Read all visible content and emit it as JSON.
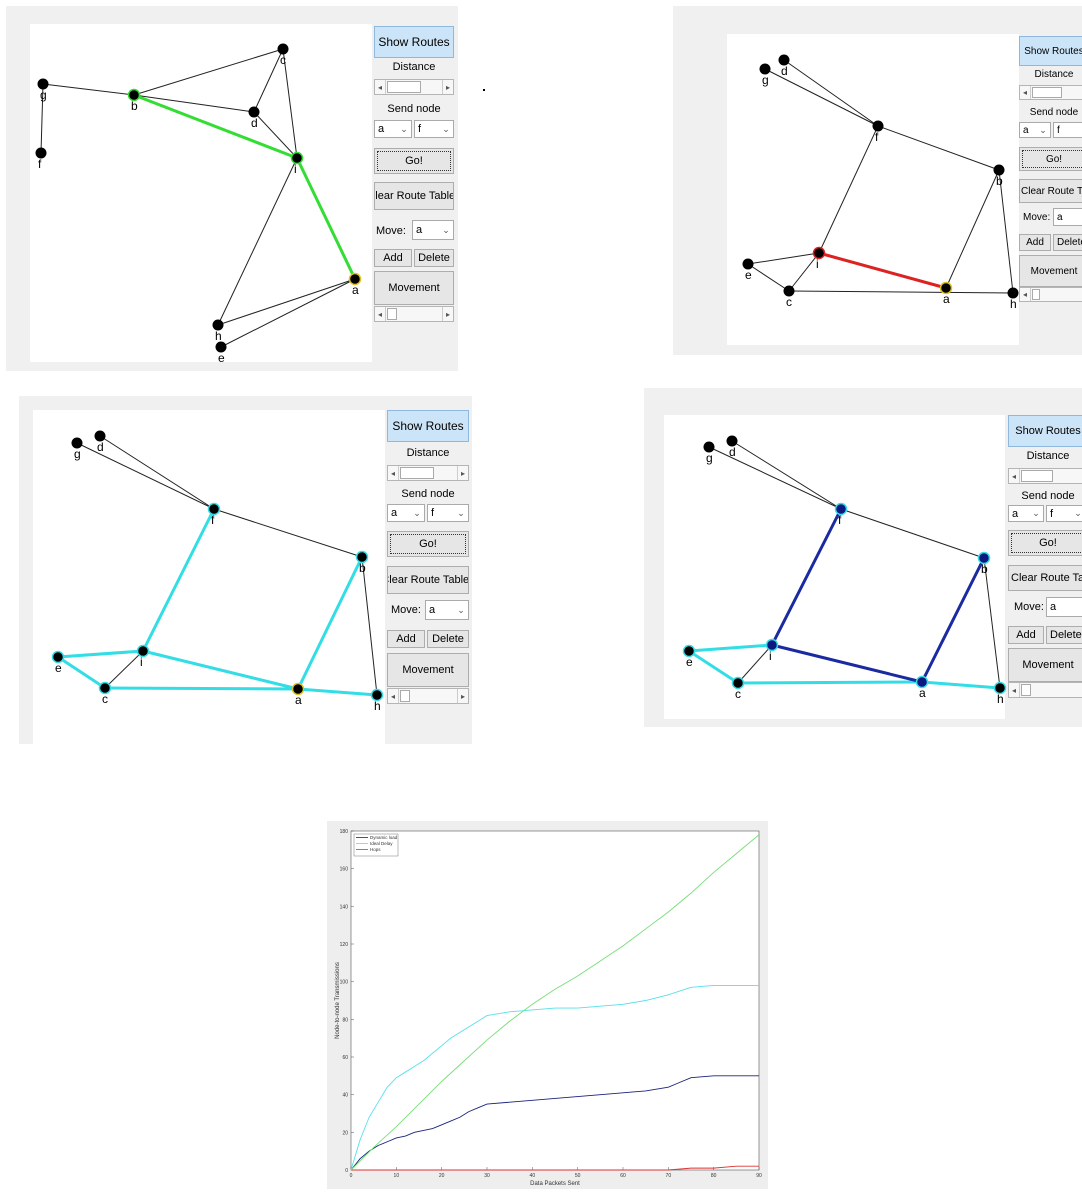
{
  "controls": {
    "show_routes": "Show Routes",
    "distance": "Distance",
    "send_node": "Send node",
    "from_value": "a",
    "to_value": "f",
    "go": "Go!",
    "clear_route_tables": "Clear Route Tables",
    "clear_route_tables_truncated": "Clear Route Table",
    "move_label": "Move:",
    "move_value": "a",
    "add": "Add",
    "delete": "Delete",
    "delete_truncated": "Delete",
    "movement": "Movement"
  },
  "panels": [
    {
      "id": "top-left",
      "edges": [
        [
          "g",
          "b"
        ],
        [
          "g",
          "f"
        ],
        [
          "b",
          "c"
        ],
        [
          "b",
          "d"
        ],
        [
          "c",
          "d"
        ],
        [
          "c",
          "i"
        ],
        [
          "d",
          "i"
        ],
        [
          "i",
          "h"
        ],
        [
          "h",
          "a"
        ],
        [
          "a",
          "e"
        ],
        [
          "a",
          "i"
        ],
        [
          "b",
          "i"
        ]
      ],
      "highlight": [
        [
          "b",
          "i"
        ],
        [
          "i",
          "a"
        ]
      ],
      "highlight_color": "#33dd33",
      "nodes": [
        {
          "id": "g",
          "label": "g"
        },
        {
          "id": "f",
          "label": "f"
        },
        {
          "id": "b",
          "label": "b"
        },
        {
          "id": "c",
          "label": "c"
        },
        {
          "id": "d",
          "label": "d"
        },
        {
          "id": "i",
          "label": "i"
        },
        {
          "id": "a",
          "label": "a"
        },
        {
          "id": "h",
          "label": "h"
        },
        {
          "id": "e",
          "label": "e"
        }
      ]
    },
    {
      "id": "top-right",
      "edges": [
        [
          "g",
          "f"
        ],
        [
          "d",
          "f"
        ],
        [
          "f",
          "i"
        ],
        [
          "f",
          "b"
        ],
        [
          "b",
          "a"
        ],
        [
          "b",
          "h"
        ],
        [
          "e",
          "i"
        ],
        [
          "e",
          "c"
        ],
        [
          "c",
          "i"
        ],
        [
          "c",
          "h"
        ],
        [
          "i",
          "a"
        ]
      ],
      "highlight": [
        [
          "i",
          "a"
        ]
      ],
      "highlight_color": "#dd2222",
      "nodes": [
        {
          "id": "g",
          "label": "g"
        },
        {
          "id": "d",
          "label": "d"
        },
        {
          "id": "f",
          "label": "f"
        },
        {
          "id": "b",
          "label": "b"
        },
        {
          "id": "e",
          "label": "e"
        },
        {
          "id": "i",
          "label": "i"
        },
        {
          "id": "c",
          "label": "c"
        },
        {
          "id": "a",
          "label": "a"
        },
        {
          "id": "h",
          "label": "h"
        }
      ]
    },
    {
      "id": "middle-left",
      "edges": [
        [
          "g",
          "f"
        ],
        [
          "d",
          "f"
        ],
        [
          "f",
          "b"
        ],
        [
          "b",
          "h"
        ],
        [
          "c",
          "i"
        ]
      ],
      "highlight": [
        [
          "f",
          "i"
        ],
        [
          "i",
          "a"
        ],
        [
          "a",
          "b"
        ],
        [
          "e",
          "i"
        ],
        [
          "e",
          "c"
        ],
        [
          "c",
          "a"
        ],
        [
          "a",
          "h"
        ]
      ],
      "highlight_color": "#33dde6",
      "nodes": [
        {
          "id": "g",
          "label": "g"
        },
        {
          "id": "d",
          "label": "d"
        },
        {
          "id": "f",
          "label": "f"
        },
        {
          "id": "b",
          "label": "b"
        },
        {
          "id": "e",
          "label": "e"
        },
        {
          "id": "i",
          "label": "i"
        },
        {
          "id": "c",
          "label": "c"
        },
        {
          "id": "a",
          "label": "a"
        },
        {
          "id": "h",
          "label": "h"
        }
      ]
    },
    {
      "id": "middle-right",
      "edges": [
        [
          "g",
          "f"
        ],
        [
          "d",
          "f"
        ],
        [
          "f",
          "b"
        ],
        [
          "b",
          "h"
        ],
        [
          "c",
          "i"
        ]
      ],
      "highlight": [
        [
          "e",
          "i"
        ],
        [
          "e",
          "c"
        ],
        [
          "c",
          "a"
        ],
        [
          "a",
          "h"
        ]
      ],
      "highlight_color": "#33dde6",
      "highlight2": [
        [
          "f",
          "i"
        ],
        [
          "i",
          "a"
        ],
        [
          "a",
          "b"
        ]
      ],
      "highlight2_color": "#1a2aa0",
      "nodes": [
        {
          "id": "g",
          "label": "g"
        },
        {
          "id": "d",
          "label": "d"
        },
        {
          "id": "f",
          "label": "f"
        },
        {
          "id": "b",
          "label": "b"
        },
        {
          "id": "e",
          "label": "e"
        },
        {
          "id": "i",
          "label": "i"
        },
        {
          "id": "c",
          "label": "c"
        },
        {
          "id": "a",
          "label": "a"
        },
        {
          "id": "h",
          "label": "h"
        }
      ]
    }
  ],
  "chart_data": {
    "type": "line",
    "title": "",
    "xlabel": "Data Packets Sent",
    "ylabel": "Node-to-node Transmissions",
    "xlim": [
      0,
      90
    ],
    "ylim": [
      0,
      180
    ],
    "xticks": [
      0,
      10,
      20,
      30,
      40,
      50,
      60,
      70,
      80,
      90
    ],
    "yticks": [
      0,
      20,
      40,
      60,
      80,
      100,
      120,
      140,
      160,
      180
    ],
    "legend_placement": "top-left",
    "series": [
      {
        "name": "Dynamic load",
        "color": "#1a237e",
        "x": [
          0,
          2,
          4,
          6,
          8,
          10,
          12,
          14,
          16,
          18,
          20,
          22,
          24,
          26,
          28,
          30,
          35,
          40,
          45,
          50,
          55,
          60,
          65,
          70,
          72,
          75,
          80,
          85,
          90
        ],
        "y": [
          0,
          6,
          10,
          13,
          15,
          17,
          18,
          20,
          21,
          22,
          24,
          26,
          28,
          31,
          33,
          35,
          36,
          37,
          38,
          39,
          40,
          41,
          42,
          44,
          46,
          49,
          50,
          50,
          50
        ]
      },
      {
        "name": "Ideal Delay",
        "color": "#55e0ea",
        "x": [
          0,
          1,
          2,
          4,
          6,
          8,
          10,
          12,
          14,
          16,
          18,
          20,
          22,
          24,
          26,
          28,
          30,
          35,
          40,
          45,
          50,
          55,
          60,
          65,
          70,
          75,
          80,
          85,
          90
        ],
        "y": [
          0,
          8,
          16,
          28,
          36,
          44,
          49,
          52,
          55,
          58,
          62,
          66,
          70,
          73,
          76,
          79,
          82,
          84,
          85,
          86,
          86,
          87,
          88,
          90,
          93,
          97,
          98,
          98,
          98
        ]
      },
      {
        "name": "Hops",
        "color": "#dd3333",
        "x": [
          0,
          10,
          20,
          30,
          40,
          50,
          60,
          70,
          75,
          80,
          85,
          90
        ],
        "y": [
          0,
          0,
          0,
          0,
          0,
          0,
          0,
          0,
          1,
          1,
          2,
          2
        ]
      },
      {
        "name": "",
        "color": "#77dd77",
        "x": [
          0,
          5,
          10,
          15,
          20,
          25,
          30,
          35,
          40,
          45,
          50,
          55,
          60,
          65,
          70,
          75,
          80,
          85,
          90
        ],
        "y": [
          0,
          12,
          23,
          35,
          47,
          58,
          69,
          79,
          88,
          96,
          103,
          111,
          119,
          128,
          137,
          147,
          158,
          168,
          178
        ]
      }
    ]
  }
}
